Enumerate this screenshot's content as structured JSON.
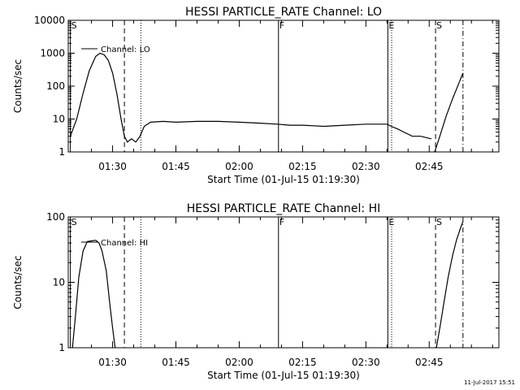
{
  "footer_timestamp": "11-Jul-2017 15:51",
  "chart_data": [
    {
      "type": "line",
      "title": "HESSI PARTICLE_RATE Channel: LO",
      "xlabel": "Start Time (01-Jul-15 01:19:30)",
      "ylabel": "Counts/sec",
      "yscale": "log",
      "xlim_minutes": [
        79.5,
        181.5
      ],
      "ylim": [
        1,
        10000
      ],
      "x_ticks": [
        {
          "minutes": 90,
          "label": "01:30"
        },
        {
          "minutes": 105,
          "label": "01:45"
        },
        {
          "minutes": 120,
          "label": "02:00"
        },
        {
          "minutes": 135,
          "label": "02:15"
        },
        {
          "minutes": 150,
          "label": "02:30"
        },
        {
          "minutes": 165,
          "label": "02:45"
        }
      ],
      "y_ticks": [
        {
          "value": 1,
          "label": "1"
        },
        {
          "value": 10,
          "label": "10"
        },
        {
          "value": 100,
          "label": "100"
        },
        {
          "value": 1000,
          "label": "1000"
        },
        {
          "value": 10000,
          "label": "10000"
        }
      ],
      "legend": {
        "label": "Channel: LO",
        "position": "top-left"
      },
      "markers": [
        {
          "minutes": 80.0,
          "label": "S",
          "style": "solid"
        },
        {
          "minutes": 92.8,
          "label": "",
          "style": "dashed"
        },
        {
          "minutes": 96.7,
          "label": "",
          "style": "dotted"
        },
        {
          "minutes": 129.3,
          "label": "F",
          "style": "solid"
        },
        {
          "minutes": 155.2,
          "label": "E",
          "style": "solid"
        },
        {
          "minutes": 156.1,
          "label": "",
          "style": "dotted"
        },
        {
          "minutes": 166.5,
          "label": "S",
          "style": "dashed"
        },
        {
          "minutes": 173.0,
          "label": "",
          "style": "dashdot"
        }
      ],
      "series": [
        {
          "name": "Channel: LO",
          "segments": [
            {
              "x": [
                80.0,
                81.5,
                83.0,
                84.5,
                86.0,
                87.0,
                88.0,
                89.0,
                90.0,
                91.0,
                92.0,
                92.8,
                93.5,
                94.5,
                95.5,
                96.5,
                97.5,
                99.0,
                102.0,
                105.0,
                110.0,
                115.0,
                120.0,
                125.0,
                129.0,
                132.0,
                135.0,
                140.0,
                145.0,
                150.0,
                155.0,
                156.0,
                157.5,
                159.0,
                161.0,
                163.0,
                165.5
              ],
              "y": [
                3,
                10,
                60,
                300,
                800,
                1000,
                900,
                600,
                250,
                60,
                10,
                3,
                2,
                2.5,
                2,
                3,
                6,
                8,
                8.5,
                8,
                8.5,
                8.5,
                8,
                7.5,
                7,
                6.5,
                6.5,
                6,
                6.5,
                7,
                7,
                6,
                5,
                4,
                3,
                3,
                2.5
              ]
            },
            {
              "x": [
                166.3,
                167.5,
                169.0,
                170.5,
                172.0,
                173.0
              ],
              "y": [
                1.0,
                3,
                12,
                40,
                120,
                250
              ]
            }
          ]
        }
      ]
    },
    {
      "type": "line",
      "title": "HESSI PARTICLE_RATE Channel: HI",
      "xlabel": "Start Time (01-Jul-15 01:19:30)",
      "ylabel": "Counts/sec",
      "yscale": "log",
      "xlim_minutes": [
        79.5,
        181.5
      ],
      "ylim": [
        1,
        100
      ],
      "x_ticks": [
        {
          "minutes": 90,
          "label": "01:30"
        },
        {
          "minutes": 105,
          "label": "01:45"
        },
        {
          "minutes": 120,
          "label": "02:00"
        },
        {
          "minutes": 135,
          "label": "02:15"
        },
        {
          "minutes": 150,
          "label": "02:30"
        },
        {
          "minutes": 165,
          "label": "02:45"
        }
      ],
      "y_ticks": [
        {
          "value": 1,
          "label": "1"
        },
        {
          "value": 10,
          "label": "10"
        },
        {
          "value": 100,
          "label": "100"
        }
      ],
      "legend": {
        "label": "Channel: HI",
        "position": "top-left"
      },
      "markers": [
        {
          "minutes": 80.0,
          "label": "S",
          "style": "solid"
        },
        {
          "minutes": 92.8,
          "label": "",
          "style": "dashed"
        },
        {
          "minutes": 96.7,
          "label": "",
          "style": "dotted"
        },
        {
          "minutes": 129.3,
          "label": "F",
          "style": "solid"
        },
        {
          "minutes": 155.2,
          "label": "E",
          "style": "solid"
        },
        {
          "minutes": 156.1,
          "label": "",
          "style": "dotted"
        },
        {
          "minutes": 166.5,
          "label": "S",
          "style": "dashed"
        },
        {
          "minutes": 173.0,
          "label": "",
          "style": "dashdot"
        }
      ],
      "series": [
        {
          "name": "Channel: HI",
          "segments": [
            {
              "x": [
                80.5,
                81.2,
                82.0,
                83.0,
                84.0,
                85.0,
                86.0,
                86.8,
                87.5,
                88.5,
                89.3,
                90.0,
                90.6
              ],
              "y": [
                1.0,
                3,
                12,
                30,
                42,
                43,
                44,
                40,
                30,
                15,
                5,
                2,
                1.0
              ]
            },
            {
              "x": [
                166.7,
                167.5,
                168.5,
                169.5,
                170.5,
                171.5,
                172.5,
                173.0
              ],
              "y": [
                1.0,
                2,
                5,
                12,
                25,
                45,
                70,
                85
              ]
            }
          ]
        }
      ]
    }
  ]
}
